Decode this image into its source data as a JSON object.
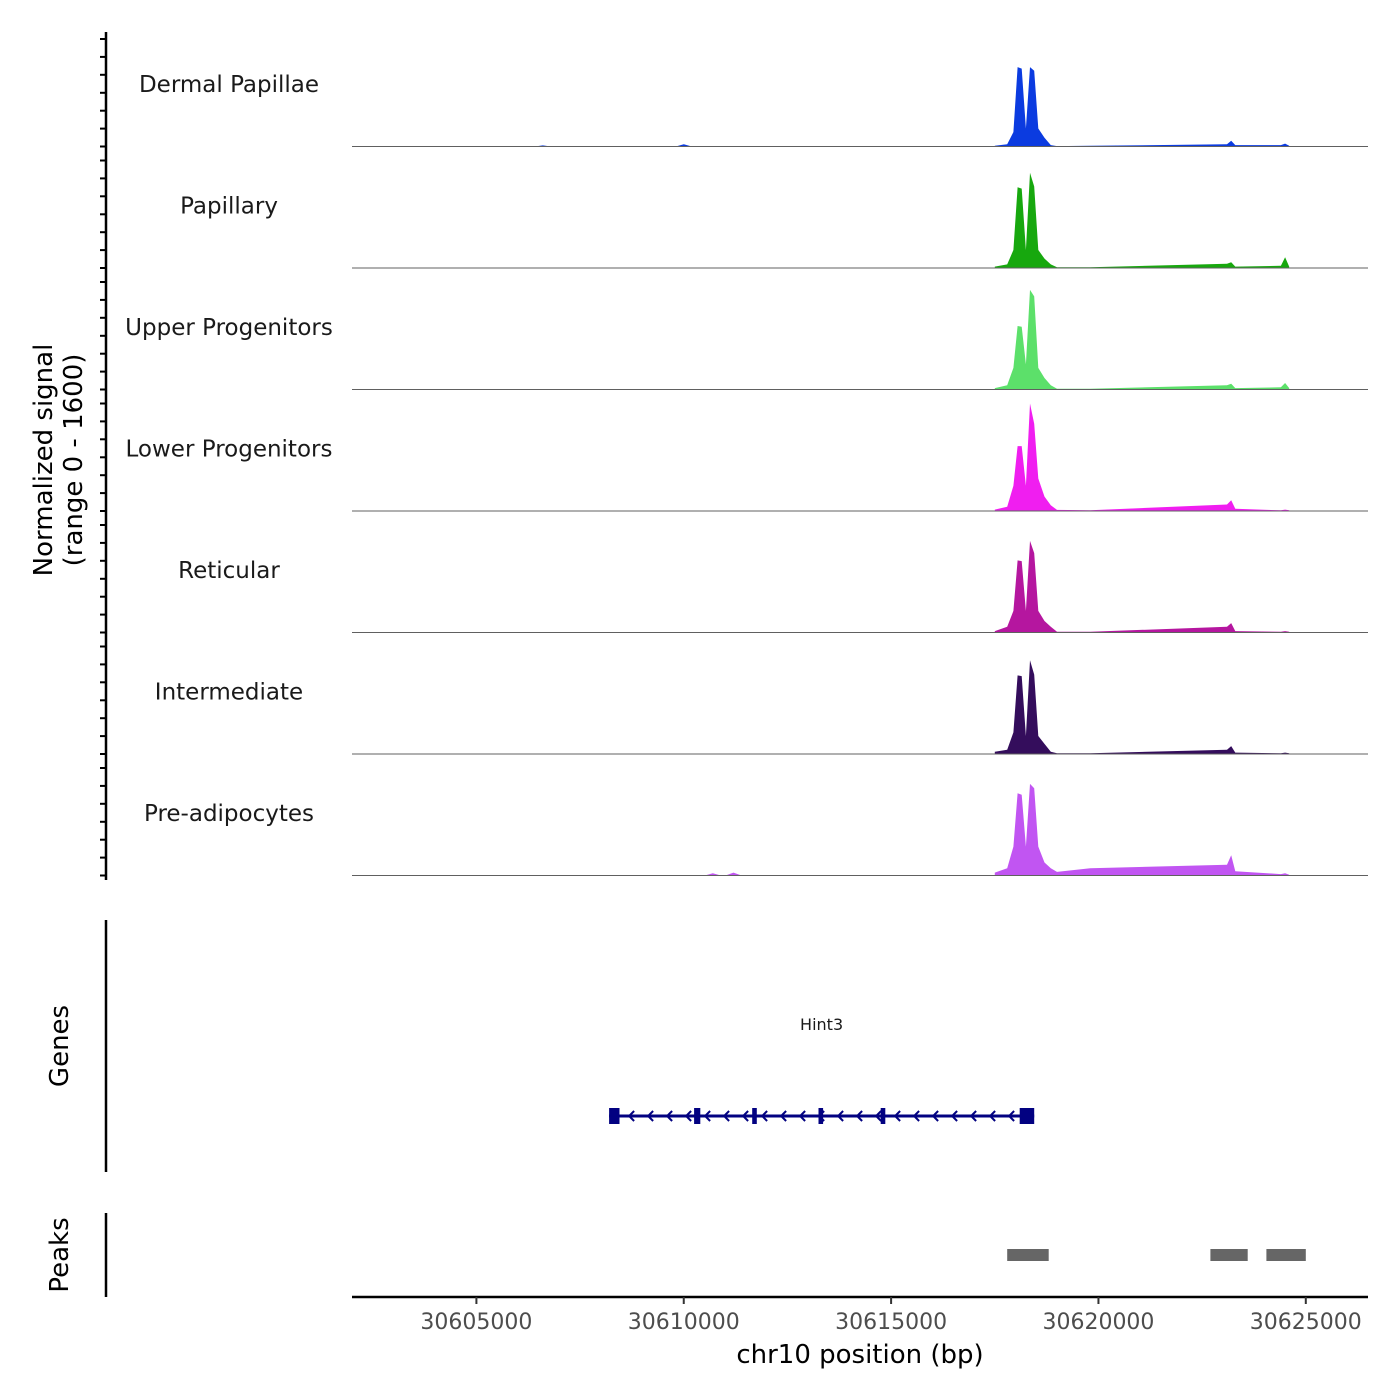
{
  "chart_data": {
    "type": "area",
    "chromosome": "chr10",
    "xlim": [
      30602000,
      30626500
    ],
    "xticks": [
      30605000,
      30610000,
      30615000,
      30620000,
      30625000
    ],
    "xtick_labels": [
      "30605000",
      "30610000",
      "30615000",
      "30620000",
      "30625000"
    ],
    "xlabel": "chr10 position (bp)",
    "ylabel": "Normalized signal",
    "ylabel_range": "(range 0 - 1600)",
    "ylim": [
      0,
      1600
    ],
    "tracks_label_genes": "Genes",
    "tracks_label_peaks": "Peaks",
    "x": [
      30617500,
      30617800,
      30617950,
      30618050,
      30618150,
      30618250,
      30618350,
      30618450,
      30618550,
      30618700,
      30618850,
      30619000,
      30619800,
      30623100,
      30623200,
      30623300,
      30624400,
      30624500,
      30624600
    ],
    "series": [
      {
        "name": "Dermal Papillae",
        "color": "#0b3be0",
        "values": [
          10,
          30,
          200,
          1100,
          1080,
          250,
          1100,
          1050,
          250,
          120,
          20,
          5,
          10,
          30,
          80,
          20,
          20,
          40,
          10
        ]
      },
      {
        "name": "Papillary",
        "color": "#17a80e",
        "values": [
          20,
          50,
          250,
          1120,
          1100,
          250,
          1320,
          1130,
          250,
          130,
          50,
          10,
          10,
          60,
          80,
          20,
          30,
          150,
          20
        ]
      },
      {
        "name": "Upper Progenitors",
        "color": "#5ce06a",
        "values": [
          20,
          60,
          300,
          880,
          870,
          350,
          1380,
          1290,
          300,
          160,
          60,
          10,
          10,
          60,
          80,
          20,
          30,
          90,
          20
        ]
      },
      {
        "name": "Lower Progenitors",
        "color": "#f01ef0",
        "values": [
          20,
          60,
          350,
          900,
          900,
          350,
          1490,
          1210,
          450,
          200,
          80,
          15,
          10,
          90,
          150,
          30,
          10,
          20,
          10
        ]
      },
      {
        "name": "Reticular",
        "color": "#b5169f",
        "values": [
          20,
          80,
          300,
          1000,
          990,
          300,
          1270,
          1100,
          300,
          160,
          80,
          10,
          10,
          80,
          130,
          20,
          10,
          20,
          10
        ]
      },
      {
        "name": "Intermediate",
        "color": "#340d5c",
        "values": [
          30,
          60,
          300,
          1090,
          1080,
          250,
          1300,
          1100,
          250,
          140,
          30,
          10,
          10,
          60,
          110,
          20,
          10,
          20,
          10
        ]
      },
      {
        "name": "Pre-adipocytes",
        "color": "#c155f2",
        "values": [
          40,
          100,
          400,
          1140,
          1120,
          400,
          1270,
          1210,
          400,
          180,
          100,
          50,
          100,
          150,
          280,
          60,
          20,
          30,
          10
        ]
      }
    ],
    "minor_peaks": [
      {
        "x": 30606600,
        "value": 15,
        "track": "Dermal Papillae"
      },
      {
        "x": 30610000,
        "value": 30,
        "track": "Dermal Papillae"
      },
      {
        "x": 30610700,
        "value": 30,
        "track": "Pre-adipocytes"
      },
      {
        "x": 30611200,
        "value": 40,
        "track": "Pre-adipocytes"
      },
      {
        "x": 30621600,
        "value": 60,
        "track": "Pre-adipocytes"
      },
      {
        "x": 30620800,
        "value": 50,
        "track": "Pre-adipocytes"
      }
    ],
    "genes": [
      {
        "name": "Hint3",
        "start": 30608200,
        "end": 30618450,
        "strand": "-",
        "color": "#020181",
        "exons": [
          [
            30608200,
            30608450
          ],
          [
            30610250,
            30610400
          ],
          [
            30611650,
            30611760
          ],
          [
            30613250,
            30613360
          ],
          [
            30614750,
            30614860
          ],
          [
            30618100,
            30618450
          ]
        ]
      }
    ],
    "peaks": [
      {
        "start": 30617800,
        "end": 30618800
      },
      {
        "start": 30622700,
        "end": 30623600
      },
      {
        "start": 30624050,
        "end": 30625000
      }
    ]
  }
}
